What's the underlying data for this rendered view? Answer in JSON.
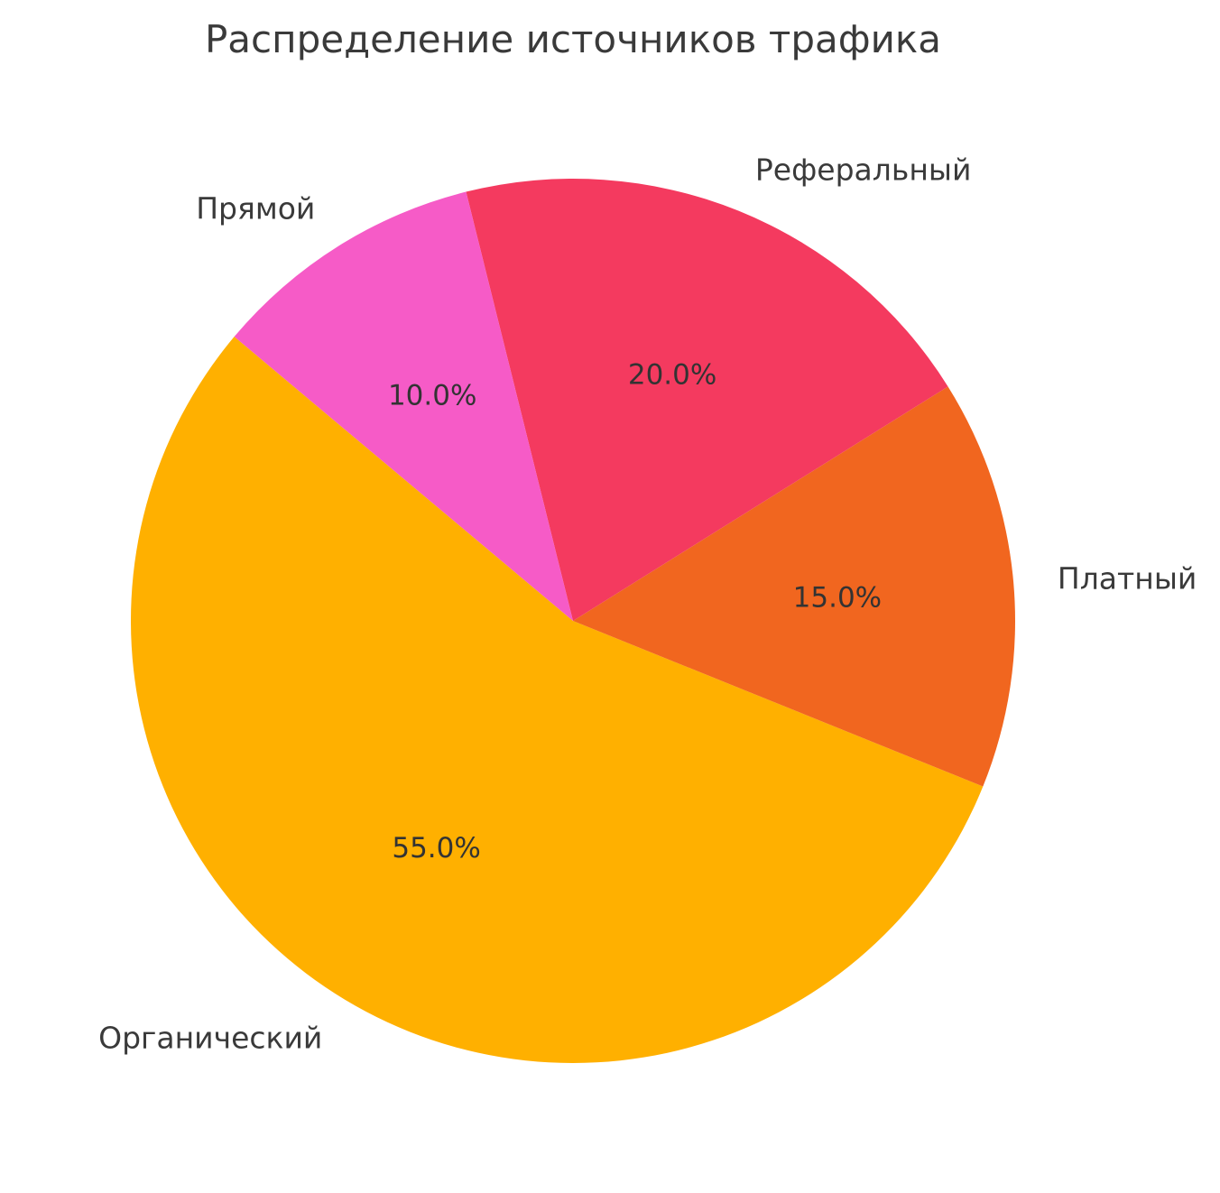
{
  "chart_data": {
    "type": "pie",
    "title": "Распределение источников трафика",
    "slices": [
      {
        "label": "Органический",
        "value": 55,
        "pct_label": "55.0%",
        "color": "#FFB000"
      },
      {
        "label": "Платный",
        "value": 15,
        "pct_label": "15.0%",
        "color": "#F1661F"
      },
      {
        "label": "Реферальный",
        "value": 20,
        "pct_label": "20.0%",
        "color": "#F43A5F"
      },
      {
        "label": "Прямой",
        "value": 10,
        "pct_label": "10.0%",
        "color": "#F65BC7"
      }
    ],
    "start_angle_deg": 140,
    "direction": "counterclockwise",
    "label_distance": 1.1,
    "pct_distance": 0.6,
    "legend": "none",
    "grid": "off",
    "background": "#FFFFFF",
    "text_color": "#3A3A3A"
  }
}
